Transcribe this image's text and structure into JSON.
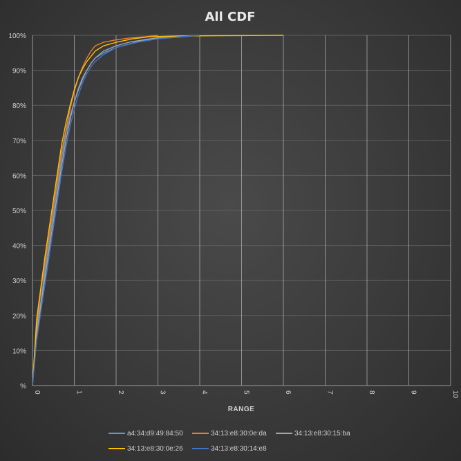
{
  "chart_data": {
    "type": "line",
    "title": "All CDF",
    "xlabel": "RANGE",
    "ylabel": "",
    "xlim": [
      0,
      10
    ],
    "ylim": [
      0,
      100
    ],
    "x_ticks": [
      "0",
      "1",
      "2",
      "3",
      "4",
      "5",
      "6",
      "7",
      "8",
      "9",
      "10"
    ],
    "y_ticks": [
      "%",
      "10%",
      "20%",
      "30%",
      "40%",
      "50%",
      "60%",
      "70%",
      "80%",
      "90%",
      "100%"
    ],
    "grid": true,
    "legend_position": "bottom",
    "series": [
      {
        "name": "a4:34:d9:49:84:50",
        "color": "#5b9bd5",
        "points": [
          [
            0,
            0
          ],
          [
            0.1,
            16
          ],
          [
            0.2,
            24
          ],
          [
            0.3,
            33
          ],
          [
            0.4,
            41
          ],
          [
            0.5,
            49
          ],
          [
            0.6,
            57
          ],
          [
            0.7,
            65
          ],
          [
            0.8,
            72
          ],
          [
            0.9,
            77
          ],
          [
            1.0,
            81
          ],
          [
            1.1,
            85
          ],
          [
            1.2,
            88
          ],
          [
            1.3,
            90
          ],
          [
            1.4,
            92
          ],
          [
            1.5,
            93.5
          ],
          [
            1.7,
            95
          ],
          [
            2.0,
            96.5
          ],
          [
            2.3,
            97.5
          ],
          [
            2.6,
            98.5
          ],
          [
            3.0,
            99
          ],
          [
            3.5,
            99.5
          ],
          [
            4.0,
            100
          ]
        ]
      },
      {
        "name": "34:13:e8:30:0e:da",
        "color": "#ed7d31",
        "points": [
          [
            0,
            0
          ],
          [
            0.1,
            17
          ],
          [
            0.2,
            27
          ],
          [
            0.3,
            35
          ],
          [
            0.4,
            43
          ],
          [
            0.5,
            51
          ],
          [
            0.6,
            59
          ],
          [
            0.7,
            67
          ],
          [
            0.8,
            73
          ],
          [
            0.9,
            79
          ],
          [
            1.0,
            84
          ],
          [
            1.1,
            88
          ],
          [
            1.2,
            91
          ],
          [
            1.3,
            93.5
          ],
          [
            1.4,
            95.5
          ],
          [
            1.5,
            97
          ],
          [
            1.7,
            98
          ],
          [
            2.0,
            98.7
          ],
          [
            2.3,
            99.2
          ],
          [
            2.7,
            99.6
          ],
          [
            3.0,
            100
          ]
        ]
      },
      {
        "name": "34:13:e8:30:15:ba",
        "color": "#a5a5a5",
        "points": [
          [
            0,
            0
          ],
          [
            0.1,
            14
          ],
          [
            0.2,
            23
          ],
          [
            0.3,
            31
          ],
          [
            0.4,
            39
          ],
          [
            0.5,
            47
          ],
          [
            0.6,
            55
          ],
          [
            0.7,
            63
          ],
          [
            0.8,
            70
          ],
          [
            0.9,
            76
          ],
          [
            1.0,
            81
          ],
          [
            1.1,
            84.5
          ],
          [
            1.2,
            87.5
          ],
          [
            1.3,
            90
          ],
          [
            1.4,
            92
          ],
          [
            1.5,
            93.5
          ],
          [
            1.7,
            95.5
          ],
          [
            2.0,
            97
          ],
          [
            2.3,
            98
          ],
          [
            2.7,
            98.8
          ],
          [
            3.0,
            99.3
          ],
          [
            3.5,
            99.7
          ],
          [
            4.0,
            100
          ]
        ]
      },
      {
        "name": "34:13:e8:30:0e:26",
        "color": "#ffc000",
        "points": [
          [
            0,
            0
          ],
          [
            0.1,
            19
          ],
          [
            0.2,
            28
          ],
          [
            0.3,
            37
          ],
          [
            0.4,
            45
          ],
          [
            0.5,
            53
          ],
          [
            0.6,
            61
          ],
          [
            0.7,
            69
          ],
          [
            0.8,
            75
          ],
          [
            0.9,
            80
          ],
          [
            1.0,
            84.5
          ],
          [
            1.1,
            88
          ],
          [
            1.2,
            90.5
          ],
          [
            1.3,
            92.5
          ],
          [
            1.4,
            94
          ],
          [
            1.5,
            95.5
          ],
          [
            1.7,
            97
          ],
          [
            2.0,
            98
          ],
          [
            2.4,
            99
          ],
          [
            2.8,
            99.6
          ],
          [
            3.5,
            99.8
          ],
          [
            4.5,
            99.9
          ],
          [
            6.0,
            100
          ]
        ]
      },
      {
        "name": "34:13:e8:30:14:e8",
        "color": "#4472c4",
        "points": [
          [
            0,
            0
          ],
          [
            0.1,
            13
          ],
          [
            0.2,
            21
          ],
          [
            0.3,
            29
          ],
          [
            0.4,
            37
          ],
          [
            0.5,
            45
          ],
          [
            0.6,
            53
          ],
          [
            0.7,
            61
          ],
          [
            0.8,
            68
          ],
          [
            0.9,
            74
          ],
          [
            1.0,
            79
          ],
          [
            1.1,
            83
          ],
          [
            1.2,
            86.5
          ],
          [
            1.3,
            89
          ],
          [
            1.4,
            91
          ],
          [
            1.5,
            92.5
          ],
          [
            1.7,
            94.5
          ],
          [
            2.0,
            96.5
          ],
          [
            2.5,
            98
          ],
          [
            3.0,
            99
          ],
          [
            3.5,
            99.6
          ],
          [
            4.0,
            100
          ]
        ]
      }
    ]
  }
}
